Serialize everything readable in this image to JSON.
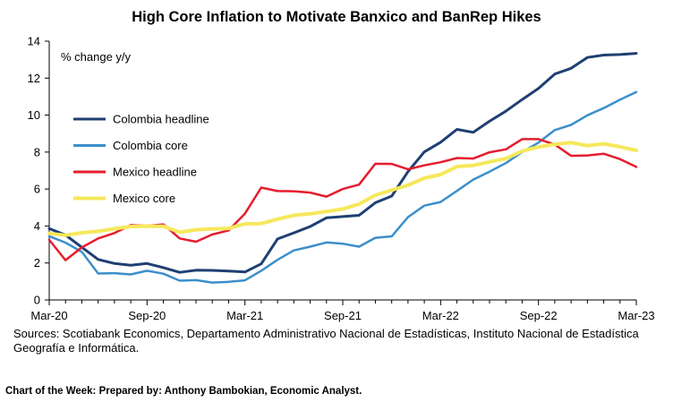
{
  "chart_data": {
    "type": "line",
    "title": "High Core Inflation to Motivate Banxico and BanRep Hikes",
    "ylabel": "% change y/y",
    "xlabel": "",
    "ylim": [
      0,
      14
    ],
    "yticks": [
      0,
      2,
      4,
      6,
      8,
      10,
      12,
      14
    ],
    "xtick_labels": [
      "Mar-20",
      "Sep-20",
      "Mar-21",
      "Sep-21",
      "Mar-22",
      "Sep-22",
      "Mar-23"
    ],
    "x": [
      "Mar-20",
      "Apr-20",
      "May-20",
      "Jun-20",
      "Jul-20",
      "Aug-20",
      "Sep-20",
      "Oct-20",
      "Nov-20",
      "Dec-20",
      "Jan-21",
      "Feb-21",
      "Mar-21",
      "Apr-21",
      "May-21",
      "Jun-21",
      "Jul-21",
      "Aug-21",
      "Sep-21",
      "Oct-21",
      "Nov-21",
      "Dec-21",
      "Jan-22",
      "Feb-22",
      "Mar-22",
      "Apr-22",
      "May-22",
      "Jun-22",
      "Jul-22",
      "Aug-22",
      "Sep-22",
      "Oct-22",
      "Nov-22",
      "Dec-22",
      "Jan-23",
      "Feb-23",
      "Mar-23"
    ],
    "legend_position": "left",
    "series": [
      {
        "name": "Colombia headline",
        "color": "#1f3f73",
        "values": [
          3.86,
          3.51,
          2.85,
          2.19,
          1.97,
          1.88,
          1.97,
          1.75,
          1.49,
          1.61,
          1.6,
          1.56,
          1.51,
          1.95,
          3.3,
          3.63,
          3.97,
          4.44,
          4.51,
          4.58,
          5.26,
          5.62,
          6.94,
          8.01,
          8.53,
          9.23,
          9.07,
          9.67,
          10.21,
          10.84,
          11.44,
          12.22,
          12.53,
          13.12,
          13.25,
          13.28,
          13.34
        ]
      },
      {
        "name": "Colombia core",
        "color": "#3c8fcb",
        "values": [
          3.45,
          3.1,
          2.6,
          1.43,
          1.45,
          1.38,
          1.58,
          1.42,
          1.04,
          1.07,
          0.94,
          0.98,
          1.06,
          1.58,
          2.17,
          2.68,
          2.88,
          3.11,
          3.04,
          2.88,
          3.36,
          3.44,
          4.48,
          5.1,
          5.3,
          5.9,
          6.51,
          6.94,
          7.4,
          8.0,
          8.51,
          9.19,
          9.47,
          9.99,
          10.38,
          10.83,
          11.25
        ]
      },
      {
        "name": "Mexico headline",
        "color": "#e51d2e",
        "values": [
          3.25,
          2.15,
          2.84,
          3.33,
          3.62,
          4.05,
          4.01,
          4.09,
          3.33,
          3.15,
          3.54,
          3.76,
          4.67,
          6.08,
          5.89,
          5.88,
          5.81,
          5.59,
          6.0,
          6.24,
          7.37,
          7.36,
          7.07,
          7.28,
          7.45,
          7.68,
          7.65,
          7.99,
          8.15,
          8.7,
          8.7,
          8.41,
          7.8,
          7.82,
          7.91,
          7.62,
          7.2
        ]
      },
      {
        "name": "Mexico core",
        "color": "#f6e85c",
        "values": [
          3.6,
          3.5,
          3.64,
          3.71,
          3.85,
          3.97,
          3.99,
          3.98,
          3.66,
          3.8,
          3.84,
          3.87,
          4.12,
          4.13,
          4.37,
          4.58,
          4.66,
          4.78,
          4.92,
          5.19,
          5.67,
          5.94,
          6.21,
          6.59,
          6.78,
          7.22,
          7.28,
          7.47,
          7.65,
          8.05,
          8.28,
          8.42,
          8.51,
          8.35,
          8.45,
          8.29,
          8.09
        ]
      }
    ]
  },
  "sources": "Sources: Scotiabank Economics, Departamento Administrativo Nacional de Estadísticas, Instituto Nacional de Estadística Geografía e Informática.",
  "footer": {
    "label": "Chart of the Week:",
    "credit": "Prepared by: Anthony Bambokian, Economic Analyst."
  }
}
